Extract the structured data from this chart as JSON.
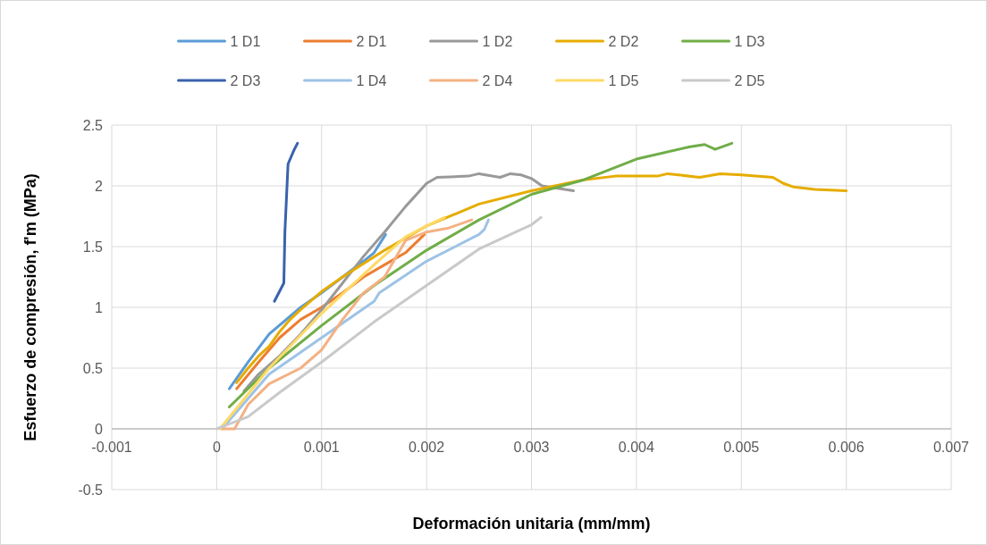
{
  "chart_data": {
    "type": "line",
    "xlabel": "Deformación unitaria (mm/mm)",
    "ylabel": "Esfuerzo de compresión, f'm (MPa)",
    "xlim": [
      -0.001,
      0.007
    ],
    "xticks": [
      -0.001,
      0,
      0.001,
      0.002,
      0.003,
      0.004,
      0.005,
      0.006,
      0.007
    ],
    "ylim": [
      -0.5,
      2.5
    ],
    "yticks": [
      -0.5,
      0,
      0.5,
      1,
      1.5,
      2,
      2.5
    ],
    "grid": true,
    "legend": "top",
    "marker": "none",
    "line_style": "solid",
    "series": [
      {
        "name": "1 D1",
        "color": "#5b9bd5",
        "x": [
          0.00012,
          0.0003,
          0.0005,
          0.0008,
          0.001,
          0.0012,
          0.0014,
          0.0015,
          0.00161
        ],
        "values": [
          0.33,
          0.55,
          0.78,
          1.0,
          1.12,
          1.25,
          1.38,
          1.45,
          1.6
        ]
      },
      {
        "name": "2 D1",
        "color": "#ed7d31",
        "x": [
          0.00019,
          0.0004,
          0.0006,
          0.0008,
          0.001,
          0.0012,
          0.0014,
          0.0016,
          0.0018,
          0.00198
        ],
        "values": [
          0.33,
          0.55,
          0.75,
          0.9,
          1.0,
          1.12,
          1.25,
          1.35,
          1.45,
          1.6
        ]
      },
      {
        "name": "1 D2",
        "color": "#999999",
        "x": [
          0.00026,
          0.0004,
          0.0006,
          0.0008,
          0.001,
          0.0012,
          0.0014,
          0.0016,
          0.0018,
          0.002,
          0.0021,
          0.0024,
          0.0025,
          0.0027,
          0.0028,
          0.0029,
          0.003,
          0.0031,
          0.0034
        ],
        "values": [
          0.31,
          0.45,
          0.6,
          0.78,
          0.98,
          1.2,
          1.42,
          1.62,
          1.83,
          2.02,
          2.07,
          2.08,
          2.1,
          2.07,
          2.1,
          2.09,
          2.06,
          2.0,
          1.96
        ]
      },
      {
        "name": "2 D2",
        "color": "#e6ac00",
        "x": [
          0.00019,
          0.0003,
          0.0004,
          0.0005,
          0.0006,
          0.0007,
          0.0008,
          0.001,
          0.0012,
          0.0014,
          0.0016,
          0.0018,
          0.002,
          0.0025,
          0.003,
          0.0035,
          0.0038,
          0.0042,
          0.0043,
          0.0044,
          0.0046,
          0.0048,
          0.005,
          0.0053,
          0.0054,
          0.0055,
          0.0057,
          0.006
        ],
        "values": [
          0.38,
          0.5,
          0.6,
          0.68,
          0.8,
          0.9,
          0.98,
          1.13,
          1.25,
          1.36,
          1.47,
          1.57,
          1.67,
          1.85,
          1.96,
          2.05,
          2.08,
          2.08,
          2.1,
          2.09,
          2.07,
          2.1,
          2.09,
          2.07,
          2.02,
          1.99,
          1.97,
          1.96
        ]
      },
      {
        "name": "1 D3",
        "color": "#70ad47",
        "x": [
          0.00012,
          0.0005,
          0.001,
          0.0015,
          0.002,
          0.0025,
          0.003,
          0.0035,
          0.004,
          0.0045,
          0.00465,
          0.00475,
          0.00491
        ],
        "values": [
          0.18,
          0.5,
          0.85,
          1.18,
          1.47,
          1.72,
          1.93,
          2.05,
          2.22,
          2.32,
          2.34,
          2.3,
          2.35
        ]
      },
      {
        "name": "2 D3",
        "color": "#3a62ad",
        "x": [
          0.00055,
          0.00064,
          0.00065,
          0.00068,
          0.00074,
          0.00077
        ],
        "values": [
          1.05,
          1.2,
          1.62,
          2.18,
          2.3,
          2.35
        ]
      },
      {
        "name": "1 D4",
        "color": "#9dc3e6",
        "x": [
          5e-05,
          0.0005,
          0.001,
          0.0015,
          0.00155,
          0.002,
          0.0025,
          0.00255,
          0.00259
        ],
        "values": [
          0.0,
          0.45,
          0.75,
          1.05,
          1.12,
          1.38,
          1.6,
          1.64,
          1.72
        ]
      },
      {
        "name": "2 D4",
        "color": "#f4b183",
        "x": [
          5e-05,
          0.00017,
          0.0003,
          0.0005,
          0.0008,
          0.001,
          0.0012,
          0.0014,
          0.0016,
          0.0017,
          0.0018,
          0.002,
          0.0022,
          0.00243
        ],
        "values": [
          0.0,
          0.0,
          0.2,
          0.37,
          0.5,
          0.65,
          0.9,
          1.12,
          1.25,
          1.4,
          1.55,
          1.62,
          1.65,
          1.72
        ]
      },
      {
        "name": "1 D5",
        "color": "#ffd966",
        "x": [
          3e-05,
          0.0005,
          0.001,
          0.0015,
          0.0018,
          0.002,
          0.00217
        ],
        "values": [
          0.0,
          0.5,
          0.95,
          1.35,
          1.58,
          1.67,
          1.74
        ]
      },
      {
        "name": "2 D5",
        "color": "#c9c9c9",
        "x": [
          0.0,
          0.0003,
          0.0006,
          0.001,
          0.0015,
          0.002,
          0.0025,
          0.003,
          0.00309
        ],
        "values": [
          0.0,
          0.1,
          0.3,
          0.55,
          0.88,
          1.18,
          1.48,
          1.68,
          1.74
        ]
      }
    ]
  }
}
